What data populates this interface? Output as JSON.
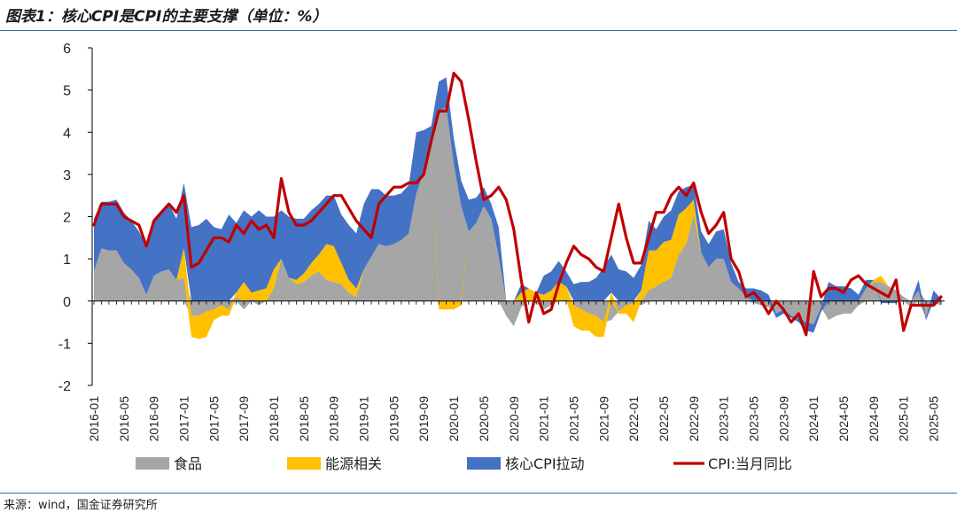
{
  "header": {
    "title": "图表1：核心CPI是CPI的主要支撑（单位：%）"
  },
  "footer": {
    "source": "来源：wind，国金证券研究所"
  },
  "colors": {
    "food": "#a6a6a6",
    "energy": "#ffc000",
    "core": "#4472c4",
    "cpi": "#c00000",
    "rule": "#2f6dab"
  },
  "chart_data": {
    "type": "area",
    "title": "核心CPI是CPI的主要支撑（单位：%）",
    "ylim": [
      -2,
      6
    ],
    "yticks": [
      "-2",
      "-1",
      "0",
      "1",
      "2",
      "3",
      "4",
      "5",
      "6"
    ],
    "grid": false,
    "legend_position": "bottom",
    "x_start": "2016-01",
    "x_tick_labels": [
      "2016-01",
      "2016-05",
      "2016-09",
      "2017-01",
      "2017-05",
      "2017-09",
      "2018-01",
      "2018-05",
      "2018-09",
      "2019-01",
      "2019-05",
      "2019-09",
      "2020-01",
      "2020-05",
      "2020-09",
      "2021-01",
      "2021-05",
      "2021-09",
      "2022-01",
      "2022-05",
      "2022-09",
      "2023-01",
      "2023-05",
      "2023-09",
      "2024-01",
      "2024-05",
      "2024-09",
      "2025-01",
      "2025-05"
    ],
    "series": [
      {
        "name": "食品",
        "kind": "stacked-area",
        "values": [
          0.7,
          1.25,
          1.2,
          1.2,
          0.9,
          0.75,
          0.55,
          0.15,
          0.6,
          0.7,
          0.75,
          0.5,
          0.55,
          -0.35,
          -0.35,
          -0.25,
          -0.2,
          -0.1,
          -0.2,
          0.1,
          -0.2,
          0.05,
          -0.1,
          0.0,
          0.3,
          1.0,
          0.55,
          0.4,
          0.45,
          0.6,
          0.7,
          0.5,
          0.45,
          0.4,
          0.2,
          0.1,
          0.75,
          1.05,
          1.35,
          1.3,
          1.35,
          1.45,
          1.6,
          2.55,
          3.05,
          3.65,
          4.5,
          4.6,
          3.25,
          2.25,
          1.65,
          1.85,
          2.25,
          1.95,
          1.05,
          -0.35,
          -0.6,
          -0.15,
          0.0,
          -0.05,
          -0.2,
          -0.1,
          0.0,
          0.05,
          -0.1,
          -0.2,
          -0.3,
          -0.35,
          -0.5,
          -0.45,
          -0.25,
          -0.1,
          -0.05,
          -0.1,
          0.25,
          0.35,
          0.45,
          0.55,
          1.1,
          1.35,
          2.05,
          1.15,
          0.8,
          1.0,
          1.0,
          0.45,
          0.3,
          0.1,
          -0.05,
          -0.1,
          -0.15,
          -0.3,
          -0.2,
          -0.35,
          -0.4,
          -0.5,
          -0.55,
          -0.15,
          -0.45,
          -0.35,
          -0.3,
          -0.3,
          -0.1,
          0.3,
          0.45,
          0.45,
          0.35,
          0.25,
          0.1,
          -0.15,
          0.25,
          -0.4,
          -0.05,
          -0.1,
          -0.1,
          -0.25,
          -0.15
        ],
        "unit": "pct-pt"
      },
      {
        "name": "能源相关",
        "kind": "stacked-area",
        "values": [
          0.0,
          0.0,
          0.0,
          0.0,
          0.0,
          0.0,
          0.0,
          0.0,
          0.0,
          0.0,
          0.0,
          0.0,
          0.7,
          -0.5,
          -0.55,
          -0.6,
          -0.25,
          -0.25,
          -0.15,
          0.1,
          0.45,
          0.15,
          0.25,
          0.3,
          0.45,
          0.0,
          0.0,
          0.1,
          0.2,
          0.3,
          0.4,
          0.85,
          0.85,
          0.5,
          0.3,
          0.2,
          0.0,
          0.0,
          0.0,
          0.0,
          0.0,
          0.0,
          0.0,
          0.0,
          0.0,
          0.0,
          -0.2,
          -0.2,
          -0.2,
          -0.1,
          0.0,
          0.0,
          0.0,
          0.0,
          0.0,
          0.0,
          0.0,
          0.2,
          0.3,
          0.2,
          0.15,
          0.25,
          0.45,
          0.3,
          -0.5,
          -0.5,
          -0.4,
          -0.5,
          -0.35,
          0.2,
          -0.05,
          -0.2,
          -0.45,
          0.25,
          0.95,
          0.85,
          0.95,
          0.9,
          0.95,
          0.85,
          0.35,
          0.0,
          0.0,
          0.0,
          0.0,
          0.0,
          0.0,
          0.0,
          0.0,
          0.0,
          0.0,
          0.0,
          0.0,
          0.0,
          0.0,
          0.0,
          0.0,
          0.0,
          0.0,
          0.0,
          0.0,
          0.0,
          0.0,
          0.0,
          0.05,
          0.15,
          0.0,
          0.0,
          0.0,
          0.0,
          0.0,
          0.0,
          0.0,
          0.0,
          0.0,
          0.0,
          0.0
        ],
        "unit": "pct-pt"
      },
      {
        "name": "核心CPI拉动",
        "kind": "stacked-area",
        "values": [
          1.25,
          1.1,
          1.15,
          1.2,
          1.2,
          1.15,
          1.1,
          1.15,
          1.35,
          1.45,
          1.55,
          1.45,
          1.55,
          1.75,
          1.8,
          1.95,
          1.75,
          1.7,
          2.05,
          1.65,
          1.7,
          1.8,
          1.9,
          1.7,
          1.25,
          1.15,
          1.45,
          1.45,
          1.3,
          1.25,
          1.2,
          1.15,
          1.2,
          1.15,
          1.3,
          1.3,
          1.55,
          1.6,
          1.3,
          1.2,
          1.15,
          1.1,
          1.15,
          1.45,
          1.0,
          0.5,
          0.7,
          0.7,
          0.6,
          0.6,
          0.75,
          0.6,
          0.45,
          0.35,
          0.7,
          0.0,
          0.0,
          0.2,
          0.0,
          0.0,
          0.45,
          0.45,
          0.5,
          0.35,
          0.4,
          0.45,
          0.45,
          0.55,
          0.8,
          0.9,
          0.75,
          0.7,
          0.55,
          0.6,
          0.7,
          0.5,
          0.6,
          0.7,
          0.55,
          0.5,
          0.35,
          0.5,
          0.55,
          0.65,
          0.7,
          0.45,
          0.15,
          0.2,
          0.3,
          0.25,
          0.15,
          -0.1,
          -0.1,
          -0.05,
          -0.1,
          -0.2,
          -0.2,
          -0.1,
          0.45,
          0.35,
          0.35,
          0.3,
          0.15,
          0.2,
          0.0,
          -0.05,
          -0.05,
          -0.05,
          0.0,
          0.0,
          0.25,
          -0.05,
          0.25,
          0.05,
          0.15,
          0.3
        ],
        "unit": "pct-pt"
      },
      {
        "name": "CPI:当月同比",
        "kind": "line",
        "values": [
          1.8,
          2.3,
          2.3,
          2.3,
          2.0,
          1.9,
          1.8,
          1.3,
          1.9,
          2.1,
          2.3,
          2.1,
          2.5,
          0.8,
          0.9,
          1.2,
          1.5,
          1.5,
          1.4,
          1.8,
          1.6,
          1.9,
          1.7,
          1.8,
          1.5,
          2.9,
          2.1,
          1.8,
          1.8,
          1.9,
          2.1,
          2.3,
          2.5,
          2.5,
          2.2,
          1.9,
          1.7,
          1.5,
          2.3,
          2.5,
          2.7,
          2.7,
          2.8,
          2.8,
          3.0,
          3.8,
          4.5,
          4.5,
          5.4,
          5.2,
          4.3,
          3.3,
          2.4,
          2.5,
          2.7,
          2.4,
          1.7,
          0.5,
          -0.5,
          0.2,
          -0.3,
          -0.2,
          0.4,
          0.9,
          1.3,
          1.1,
          1.0,
          0.8,
          0.7,
          1.5,
          2.3,
          1.5,
          0.9,
          0.9,
          1.5,
          2.1,
          2.1,
          2.5,
          2.7,
          2.5,
          2.8,
          2.1,
          1.6,
          1.8,
          2.1,
          1.0,
          0.7,
          0.1,
          0.2,
          0.0,
          -0.3,
          0.0,
          -0.2,
          -0.5,
          -0.3,
          -0.8,
          0.7,
          0.1,
          0.3,
          0.3,
          0.2,
          0.5,
          0.6,
          0.4,
          0.3,
          0.2,
          0.1,
          0.5,
          -0.7,
          -0.1,
          -0.1,
          -0.1,
          -0.1,
          0.1
        ],
        "unit": "%"
      }
    ]
  },
  "legend": {
    "items": [
      {
        "label": "食品",
        "kind": "patch"
      },
      {
        "label": "能源相关",
        "kind": "patch"
      },
      {
        "label": "核心CPI拉动",
        "kind": "patch"
      },
      {
        "label": "CPI:当月同比",
        "kind": "line"
      }
    ]
  }
}
